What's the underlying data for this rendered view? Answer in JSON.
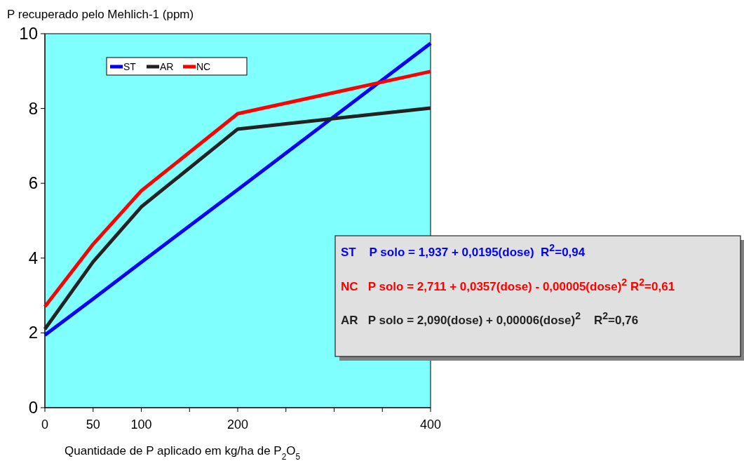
{
  "chart_data": {
    "type": "line",
    "xlabel": "Quantidade de P aplicado em kg/ha de P$_{2}$O$_{5}$",
    "ylabel": "P recuperado pelo Mehlich-1 (ppm)",
    "x": [
      0,
      50,
      100,
      200,
      400
    ],
    "xlim": [
      0,
      400
    ],
    "xticks": [
      0,
      50,
      100,
      {
        "value": 150,
        "label": null
      },
      200,
      {
        "value": 250,
        "label": null
      },
      {
        "value": 300,
        "label": null
      },
      {
        "value": 350,
        "label": null
      },
      400
    ],
    "ylim": [
      0,
      10
    ],
    "yticks": [
      0,
      2,
      4,
      6,
      8,
      10
    ],
    "series": [
      {
        "name": "ST",
        "color": "#0000ff",
        "values": [
          1.94,
          2.91,
          3.89,
          5.83,
          9.74
        ]
      },
      {
        "name": "AR",
        "color": "#222222",
        "values": [
          2.1,
          3.9,
          5.37,
          7.45,
          8.01
        ]
      },
      {
        "name": "NC",
        "color": "#ff0000",
        "values": [
          2.7,
          4.37,
          5.8,
          7.86,
          8.99
        ]
      }
    ],
    "legend": "top left",
    "grid": false,
    "marker": "none",
    "line_style": "solid",
    "annotations": [
      "ST    P solo = 1,937 + 0,0195(dose)  R$^{2}$=0,94",
      "NC   P solo = 2,711 + 0,0357(dose) - 0,00005(dose)$^{2}$ R$^{2}$=0,61",
      "AR   P solo = 2,090(dose) + 0,00006(dose)$^{2}$    R$^{2}$=0,76"
    ]
  }
}
